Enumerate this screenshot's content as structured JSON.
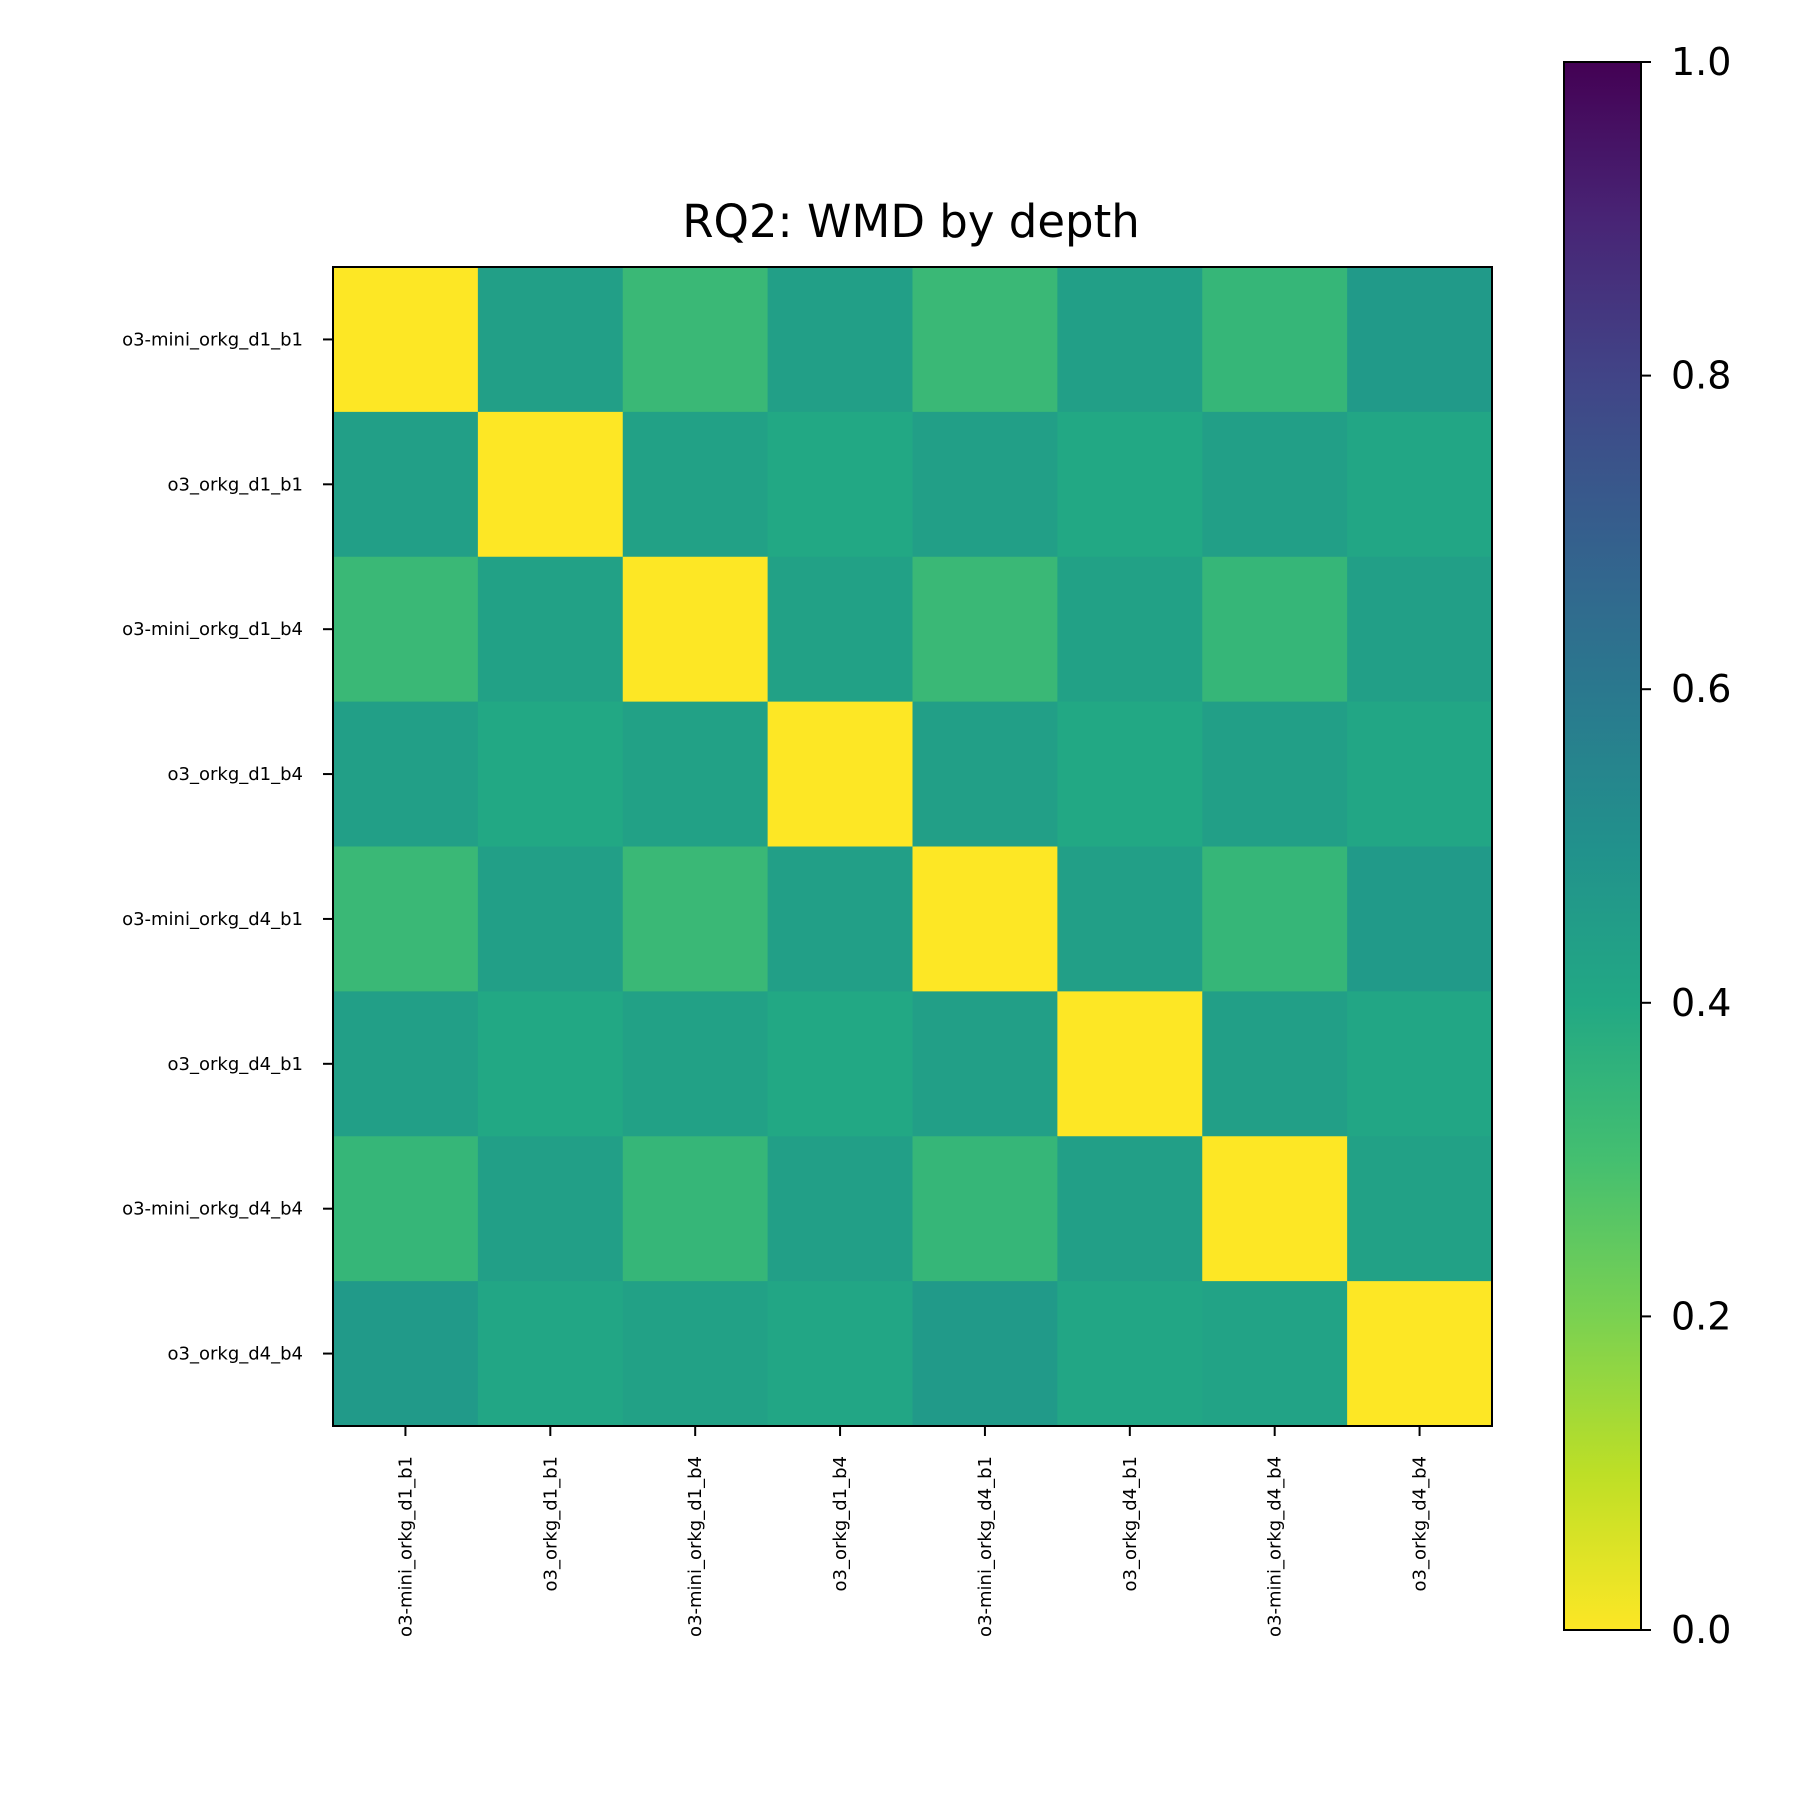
{
  "chart_data": {
    "type": "heatmap",
    "title": "RQ2: WMD by depth",
    "labels": [
      "o3-mini_orkg_d1_b1",
      "o3_orkg_d1_b1",
      "o3-mini_orkg_d1_b4",
      "o3_orkg_d1_b4",
      "o3-mini_orkg_d4_b1",
      "o3_orkg_d4_b1",
      "o3-mini_orkg_d4_b4",
      "o3_orkg_d4_b4"
    ],
    "values": [
      [
        0.0,
        0.44,
        0.33,
        0.44,
        0.33,
        0.44,
        0.34,
        0.46
      ],
      [
        0.44,
        0.0,
        0.43,
        0.4,
        0.44,
        0.4,
        0.44,
        0.41
      ],
      [
        0.33,
        0.43,
        0.0,
        0.43,
        0.33,
        0.43,
        0.34,
        0.44
      ],
      [
        0.44,
        0.4,
        0.43,
        0.0,
        0.44,
        0.4,
        0.44,
        0.41
      ],
      [
        0.33,
        0.44,
        0.33,
        0.44,
        0.0,
        0.44,
        0.34,
        0.46
      ],
      [
        0.44,
        0.4,
        0.43,
        0.4,
        0.44,
        0.0,
        0.44,
        0.41
      ],
      [
        0.34,
        0.44,
        0.34,
        0.44,
        0.34,
        0.44,
        0.0,
        0.43
      ],
      [
        0.46,
        0.41,
        0.43,
        0.41,
        0.46,
        0.41,
        0.42,
        0.0
      ]
    ],
    "colormap": "viridis_r",
    "vmin": 0.0,
    "vmax": 1.0,
    "colorbar_ticks": [
      "0.0",
      "0.2",
      "0.4",
      "0.6",
      "0.8",
      "1.0"
    ]
  }
}
